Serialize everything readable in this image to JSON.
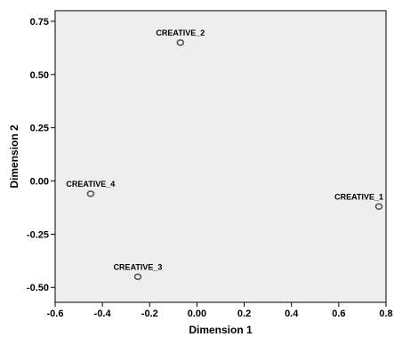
{
  "chart_data": {
    "type": "scatter",
    "xlabel": "Dimension 1",
    "ylabel": "Dimension 2",
    "xlim": [
      -0.6,
      0.8
    ],
    "ylim": [
      -0.57,
      0.8
    ],
    "x_ticks": [
      -0.6,
      -0.4,
      -0.2,
      0.0,
      0.2,
      0.4,
      0.6,
      0.8
    ],
    "x_tick_labels": [
      "-0.6",
      "-0.4",
      "-0.2",
      "0.00",
      "0.2",
      "0.4",
      "0.6",
      "0.8"
    ],
    "y_ticks": [
      0.75,
      0.5,
      0.25,
      0.0,
      -0.25,
      -0.5
    ],
    "y_tick_labels": [
      "0.75",
      "0.50",
      "0.25",
      "0.00",
      "-0.25",
      "-0.50"
    ],
    "grid": false,
    "plot_background": "#eeeeee",
    "marker_color": "#555555",
    "points": [
      {
        "label": "CREATIVE_1",
        "x": 0.77,
        "y": -0.12
      },
      {
        "label": "CREATIVE_2",
        "x": -0.07,
        "y": 0.65
      },
      {
        "label": "CREATIVE_3",
        "x": -0.25,
        "y": -0.45
      },
      {
        "label": "CREATIVE_4",
        "x": -0.45,
        "y": -0.06
      }
    ]
  }
}
